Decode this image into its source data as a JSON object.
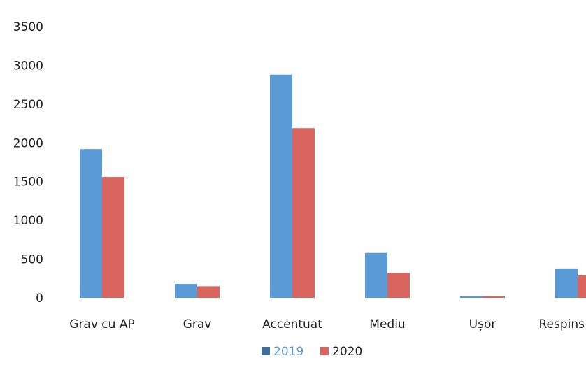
{
  "chart_data": {
    "type": "bar",
    "title": "",
    "xlabel": "",
    "ylabel": "",
    "ylim": [
      0,
      3500
    ],
    "yticks": [
      0,
      500,
      1000,
      1500,
      2000,
      2500,
      3000,
      3500
    ],
    "grid": false,
    "legend_position": "bottom",
    "categories": [
      "Grav cu AP",
      "Grav",
      "Accentuat",
      "Mediu",
      "Ușor",
      "Respins"
    ],
    "series": [
      {
        "name": "2019",
        "color": "#5b9bd5",
        "values": [
          1920,
          180,
          2880,
          580,
          10,
          380
        ]
      },
      {
        "name": "2020",
        "color": "#d9665e",
        "values": [
          1560,
          150,
          2190,
          320,
          10,
          290
        ]
      }
    ]
  }
}
